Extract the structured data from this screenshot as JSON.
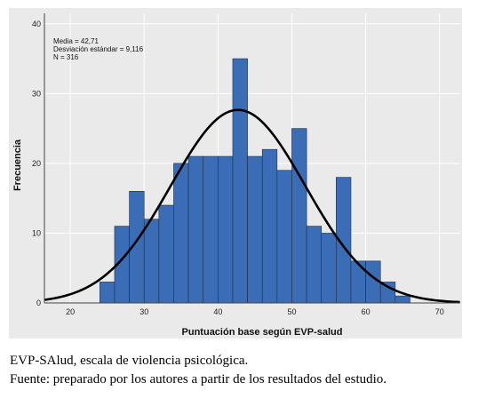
{
  "chart_data": {
    "type": "bar",
    "subtype": "histogram",
    "xlabel": "Puntuación base según EVP-salud",
    "ylabel": "Frecuencia",
    "xlim": [
      16.5,
      72.8
    ],
    "ylim": [
      0,
      41.5
    ],
    "xticks": [
      20,
      30,
      40,
      50,
      60,
      70
    ],
    "yticks": [
      0,
      10,
      20,
      30,
      40
    ],
    "grid": true,
    "bin_width": 2,
    "bins": [
      {
        "start": 24,
        "end": 26,
        "value": 3
      },
      {
        "start": 26,
        "end": 28,
        "value": 11
      },
      {
        "start": 28,
        "end": 30,
        "value": 16
      },
      {
        "start": 30,
        "end": 32,
        "value": 12
      },
      {
        "start": 32,
        "end": 34,
        "value": 14
      },
      {
        "start": 34,
        "end": 36,
        "value": 20
      },
      {
        "start": 36,
        "end": 38,
        "value": 21
      },
      {
        "start": 38,
        "end": 40,
        "value": 21
      },
      {
        "start": 40,
        "end": 42,
        "value": 21
      },
      {
        "start": 42,
        "end": 44,
        "value": 35
      },
      {
        "start": 44,
        "end": 46,
        "value": 21
      },
      {
        "start": 46,
        "end": 48,
        "value": 22
      },
      {
        "start": 48,
        "end": 50,
        "value": 19
      },
      {
        "start": 50,
        "end": 52,
        "value": 25
      },
      {
        "start": 52,
        "end": 54,
        "value": 11
      },
      {
        "start": 54,
        "end": 56,
        "value": 10
      },
      {
        "start": 56,
        "end": 58,
        "value": 18
      },
      {
        "start": 58,
        "end": 60,
        "value": 6
      },
      {
        "start": 60,
        "end": 62,
        "value": 6
      },
      {
        "start": 62,
        "end": 64,
        "value": 3
      },
      {
        "start": 64,
        "end": 66,
        "value": 1
      }
    ],
    "normal_curve": {
      "mean": 42.71,
      "sd": 9.116,
      "n": 316
    },
    "stats_text": [
      "Media = 42,71",
      "Desviación estándar = 9,116",
      "N = 316"
    ],
    "colors": {
      "bar": "#3a6db5",
      "bar_edge": "#1f2f4a",
      "background": "#eaeaea",
      "grid": "#ffffff",
      "curve": "#000000"
    }
  },
  "caption": {
    "line1": "EVP-SAlud, escala de violencia psicológica.",
    "line2": "Fuente: preparado por los autores a partir de los resultados del estudio."
  }
}
